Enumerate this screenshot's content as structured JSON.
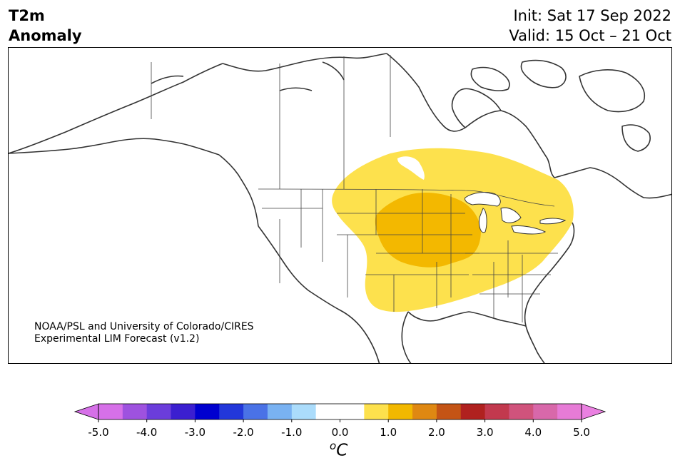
{
  "header": {
    "title_line1": "T2m",
    "title_line2": "Anomaly",
    "init": "Init: Sat 17 Sep 2022",
    "valid": "Valid: 15 Oct – 21 Oct"
  },
  "credit": {
    "line1": "NOAA/PSL and University of Colorado/CIRES",
    "line2": "Experimental LIM Forecast (v1.2)"
  },
  "map": {
    "region": "North America",
    "anomaly_regions": [
      {
        "name": "central-us-warm",
        "level": "0.5 to 1.0",
        "color": "#fde14d"
      },
      {
        "name": "midwest-warm-core",
        "level": "1.0 to 1.5",
        "color": "#f3b800"
      }
    ],
    "colors": {
      "land": "#ffffff",
      "coast": "#333333",
      "border": "#444444"
    }
  },
  "colorbar": {
    "ticks": [
      "-5.0",
      "-4.0",
      "-3.0",
      "-2.0",
      "-1.0",
      "0.0",
      "1.0",
      "2.0",
      "3.0",
      "4.0",
      "5.0"
    ],
    "colors": [
      "#d670e8",
      "#9e52df",
      "#6b3ddb",
      "#3b1fd0",
      "#0000cf",
      "#2237da",
      "#4a72e6",
      "#79b2f2",
      "#abdcfb",
      "#ffffff",
      "#ffffff",
      "#fde14d",
      "#f2b800",
      "#df8812",
      "#c45415",
      "#b0211f",
      "#c2394e",
      "#d0537c",
      "#d868aa",
      "#e67bd6"
    ],
    "under_color": "#d670e8",
    "over_color": "#ea80e1",
    "unit_base": "C",
    "unit_sup": "o"
  }
}
